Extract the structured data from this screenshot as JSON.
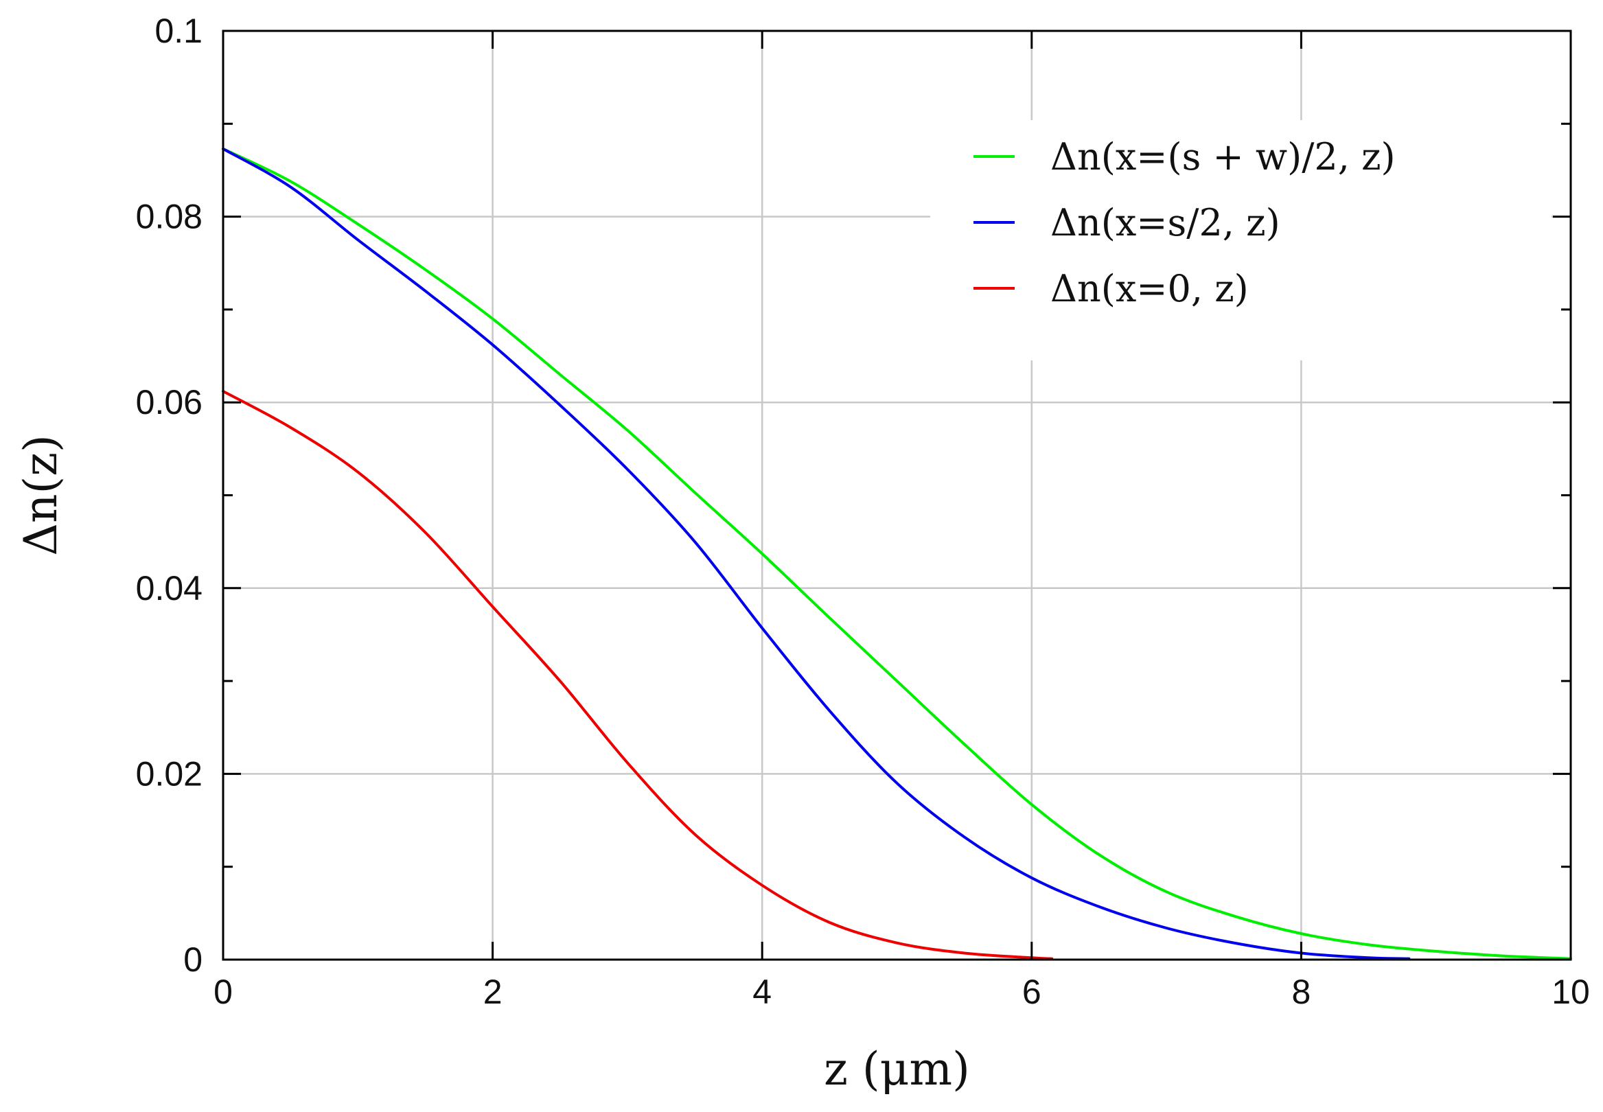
{
  "chart_data": {
    "type": "line",
    "title": "",
    "xlabel": "z (μm)",
    "ylabel": "Δn(z)",
    "xlim": [
      0,
      10
    ],
    "ylim": [
      0,
      0.1
    ],
    "xticks": [
      0,
      2,
      4,
      6,
      8,
      10
    ],
    "xtick_labels": [
      "0",
      "2",
      "4",
      "6",
      "8",
      "10"
    ],
    "yticks": [
      0,
      0.02,
      0.04,
      0.06,
      0.08,
      0.1
    ],
    "ytick_labels": [
      "0",
      "0.02",
      "0.04",
      "0.06",
      "0.08",
      "0.1"
    ],
    "y_minor_ticks": [
      0.01,
      0.03,
      0.05,
      0.07,
      0.09
    ],
    "grid": true,
    "legend_position": "top-right",
    "series": [
      {
        "name": "Δn(x=(s + w)/2, z)",
        "color": "#00ee00",
        "x": [
          0,
          0.5,
          1,
          1.5,
          2,
          2.5,
          3,
          3.5,
          4,
          4.5,
          5,
          5.5,
          6,
          6.5,
          7,
          7.5,
          8,
          8.5,
          9,
          9.5,
          10
        ],
        "y": [
          0.0873,
          0.0838,
          0.0792,
          0.0743,
          0.069,
          0.063,
          0.057,
          0.0503,
          0.0437,
          0.0368,
          0.03,
          0.0232,
          0.0167,
          0.0113,
          0.0073,
          0.0047,
          0.0028,
          0.0016,
          0.0009,
          0.0004,
          0.0001
        ]
      },
      {
        "name": "Δn(x=s/2, z)",
        "color": "#0000ee",
        "x": [
          0,
          0.5,
          1,
          1.5,
          2,
          2.5,
          3,
          3.5,
          4,
          4.5,
          5,
          5.5,
          6,
          6.5,
          7,
          7.5,
          8,
          8.5,
          8.8
        ],
        "y": [
          0.0873,
          0.0832,
          0.0775,
          0.072,
          0.0662,
          0.0597,
          0.0528,
          0.045,
          0.0357,
          0.0268,
          0.019,
          0.0132,
          0.0088,
          0.0057,
          0.0034,
          0.0018,
          0.0007,
          0.0002,
          0.0001
        ]
      },
      {
        "name": "Δn(x=0, z)",
        "color": "#ee0000",
        "x": [
          0,
          0.5,
          1,
          1.5,
          2,
          2.5,
          3,
          3.5,
          4,
          4.5,
          5,
          5.5,
          6,
          6.15
        ],
        "y": [
          0.0612,
          0.0573,
          0.0525,
          0.046,
          0.038,
          0.03,
          0.0212,
          0.0135,
          0.008,
          0.004,
          0.0018,
          0.0007,
          0.0002,
          0.0001
        ]
      }
    ]
  }
}
